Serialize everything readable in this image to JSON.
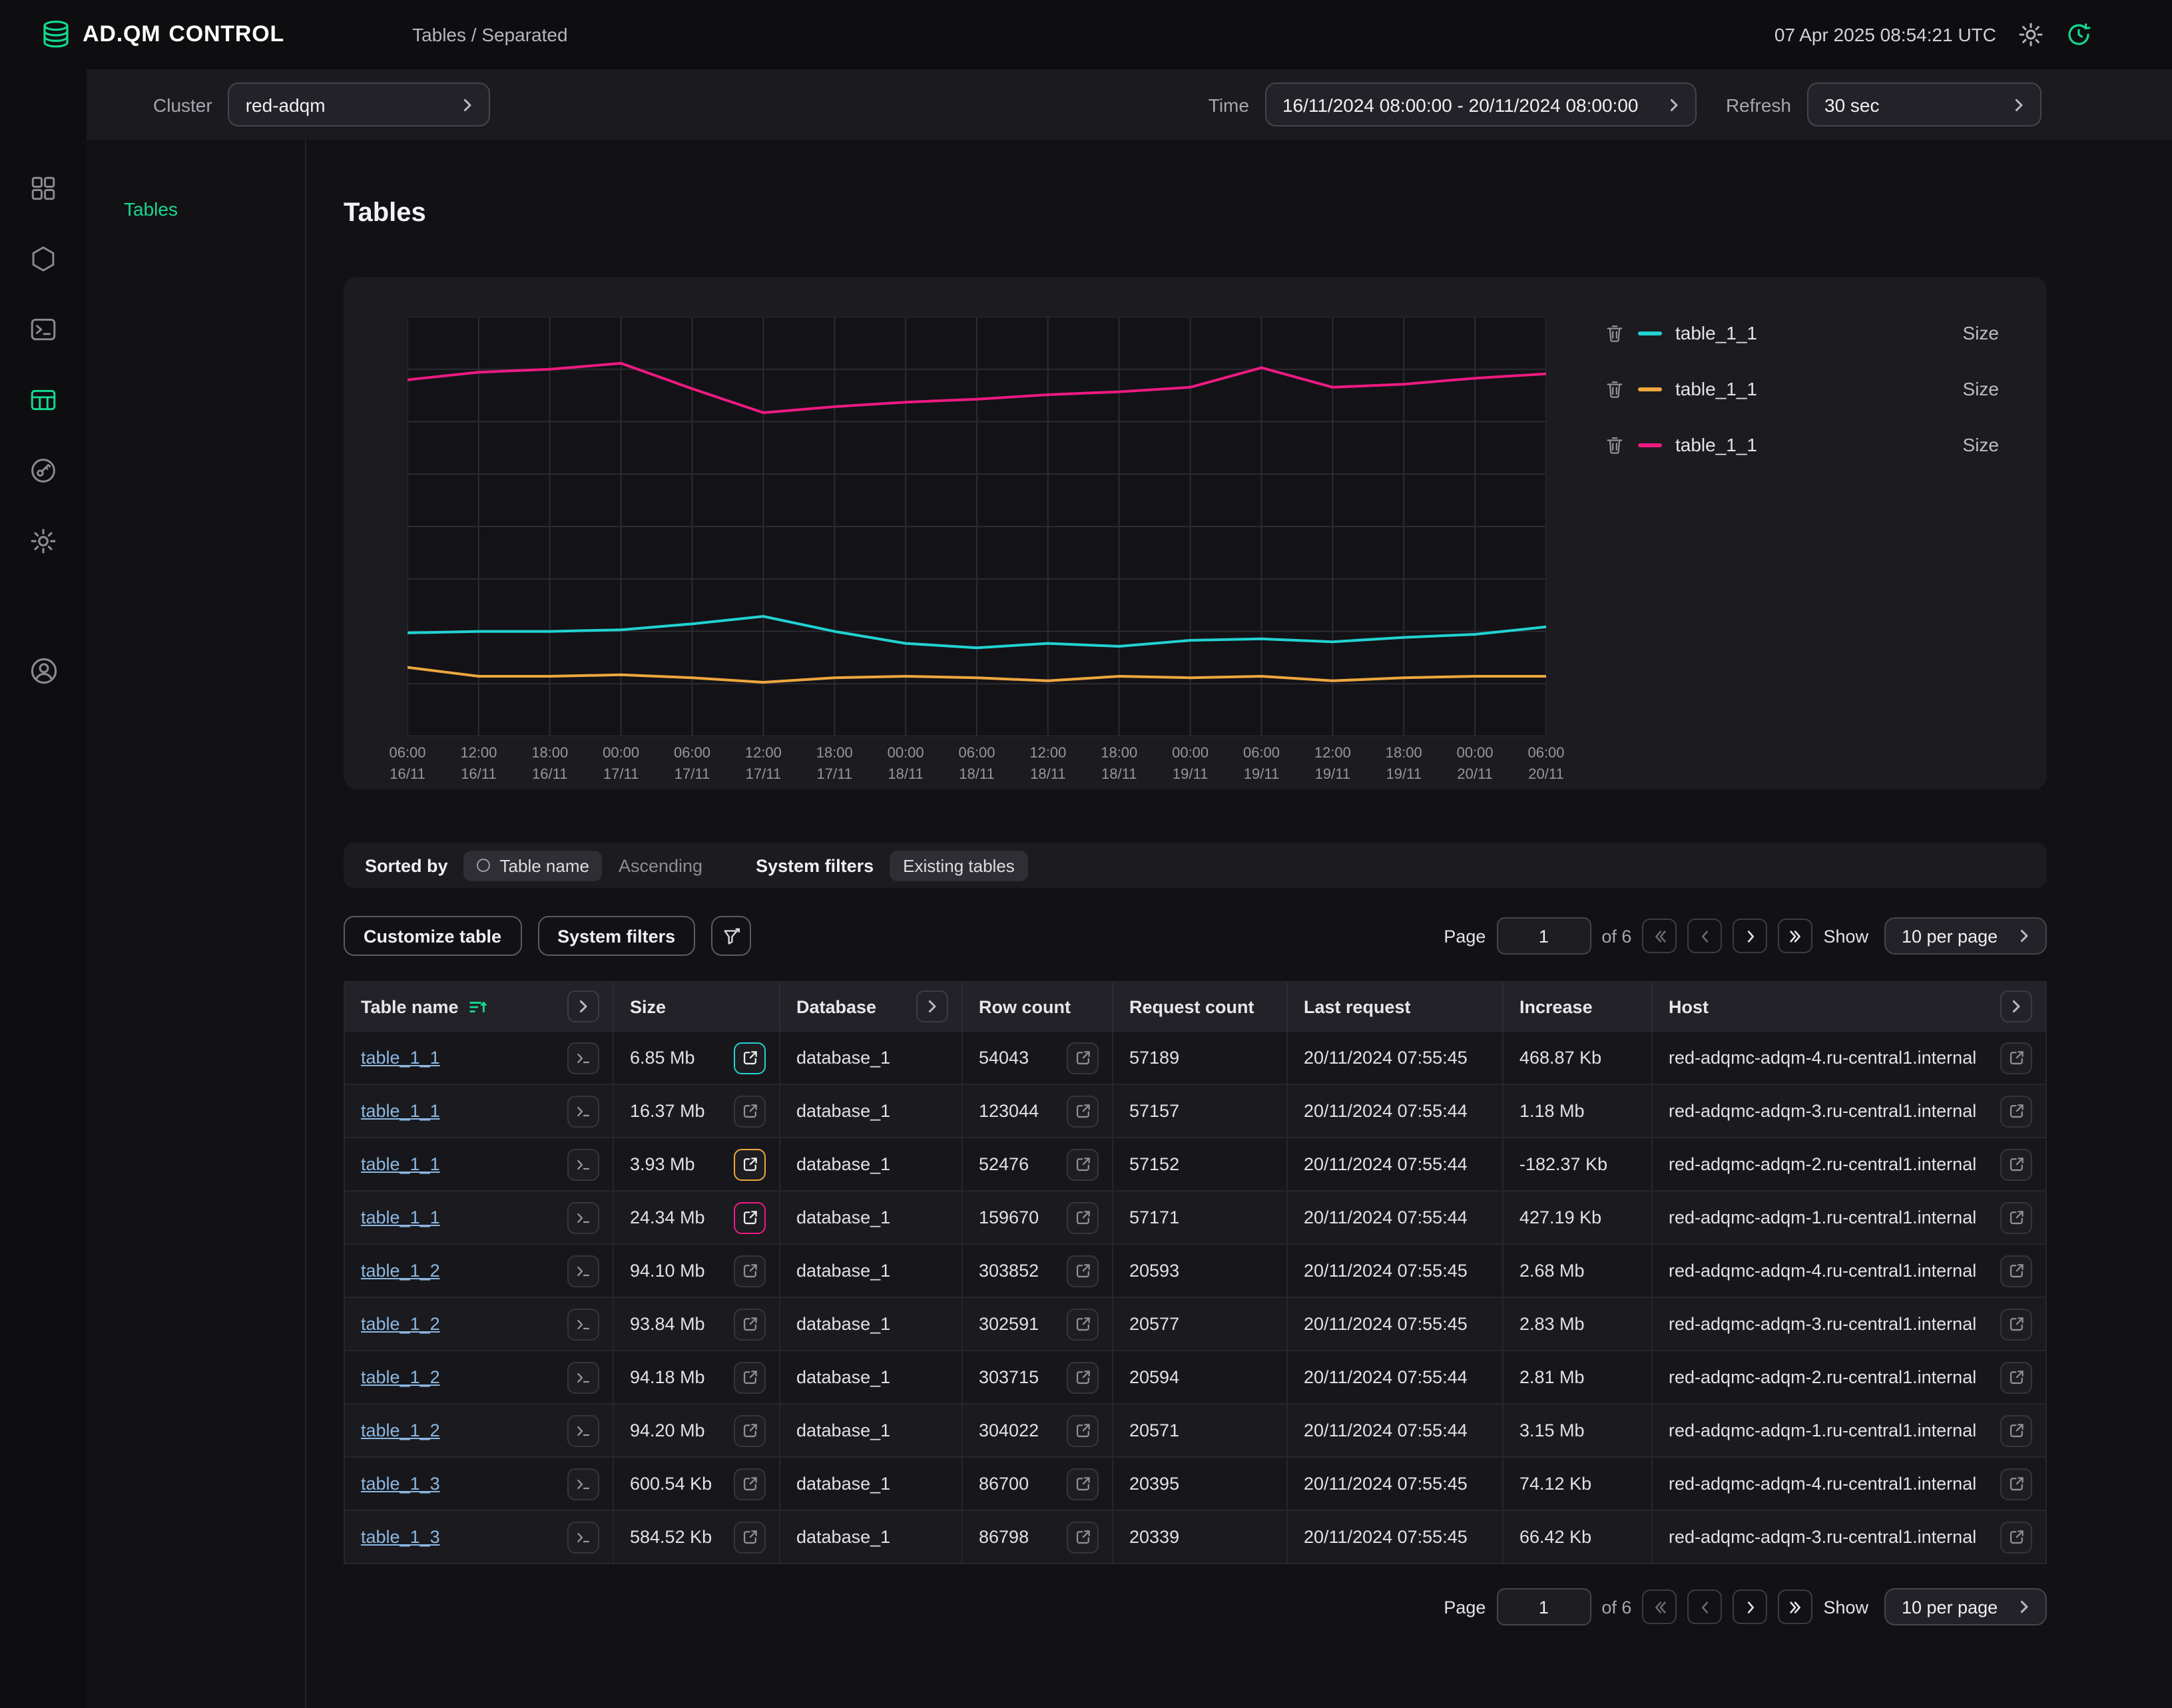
{
  "header": {
    "brand_primary": "AD.QM",
    "brand_secondary": "CONTROL",
    "breadcrumb": "Tables / Separated",
    "datetime": "07 Apr 2025  08:54:21 UTC"
  },
  "toolbar": {
    "cluster_label": "Cluster",
    "cluster_value": "red-adqm",
    "time_label": "Time",
    "time_value": "16/11/2024 08:00:00 - 20/11/2024 08:00:00",
    "refresh_label": "Refresh",
    "refresh_value": "30 sec"
  },
  "rail": {
    "items": [
      "dashboard-icon",
      "hexagon-icon",
      "terminal-icon",
      "tables-icon",
      "key-icon",
      "gear-icon"
    ],
    "active_item": "tables-icon",
    "bottom_item": "account-icon"
  },
  "subnav": {
    "items": [
      {
        "label": "Tables",
        "active": true
      }
    ]
  },
  "main": {
    "title": "Tables"
  },
  "chart_data": {
    "type": "line",
    "title": "",
    "xlabel": "",
    "ylabel": "",
    "unit": "Mb",
    "ylim": [
      0,
      28
    ],
    "grid": true,
    "legend_position": "right",
    "x_labels": [
      {
        "time": "06:00",
        "date": "16/11"
      },
      {
        "time": "12:00",
        "date": "16/11"
      },
      {
        "time": "18:00",
        "date": "16/11"
      },
      {
        "time": "00:00",
        "date": "17/11"
      },
      {
        "time": "06:00",
        "date": "17/11"
      },
      {
        "time": "12:00",
        "date": "17/11"
      },
      {
        "time": "18:00",
        "date": "17/11"
      },
      {
        "time": "00:00",
        "date": "18/11"
      },
      {
        "time": "06:00",
        "date": "18/11"
      },
      {
        "time": "12:00",
        "date": "18/11"
      },
      {
        "time": "18:00",
        "date": "18/11"
      },
      {
        "time": "00:00",
        "date": "19/11"
      },
      {
        "time": "06:00",
        "date": "19/11"
      },
      {
        "time": "12:00",
        "date": "19/11"
      },
      {
        "time": "18:00",
        "date": "19/11"
      },
      {
        "time": "00:00",
        "date": "20/11"
      },
      {
        "time": "06:00",
        "date": "20/11"
      }
    ],
    "series": [
      {
        "name": "table_1_1",
        "metric": "Size",
        "color": "#22d3d3",
        "values": [
          6.9,
          7.0,
          7.0,
          7.1,
          7.5,
          8.0,
          7.0,
          6.2,
          5.9,
          6.2,
          6.0,
          6.4,
          6.5,
          6.3,
          6.6,
          6.8,
          7.3
        ]
      },
      {
        "name": "table_1_1",
        "metric": "Size",
        "color": "#efa73e",
        "values": [
          4.6,
          4.0,
          4.0,
          4.1,
          3.9,
          3.6,
          3.9,
          4.0,
          3.9,
          3.7,
          4.0,
          3.9,
          4.0,
          3.7,
          3.9,
          4.0,
          4.0
        ]
      },
      {
        "name": "table_1_1",
        "metric": "Size",
        "color": "#ef1a82",
        "values": [
          23.8,
          24.3,
          24.5,
          24.9,
          23.2,
          21.6,
          22.0,
          22.3,
          22.5,
          22.8,
          23.0,
          23.3,
          24.6,
          23.3,
          23.5,
          23.9,
          24.2
        ]
      }
    ]
  },
  "sort_bar": {
    "sorted_by_label": "Sorted by",
    "sort_chip": "Table name",
    "direction": "Ascending",
    "filters_label": "System filters",
    "filter_chip": "Existing tables"
  },
  "controls": {
    "customize_button": "Customize table",
    "filters_button": "System filters"
  },
  "pagination": {
    "page_label": "Page",
    "page_value": "1",
    "total_label": "of 6",
    "show_label": "Show",
    "per_page_value": "10 per page"
  },
  "table": {
    "columns": [
      "Table name",
      "Size",
      "Database",
      "Row count",
      "Request count",
      "Last request",
      "Increase",
      "Host"
    ],
    "rows": [
      {
        "name": "table_1_1",
        "size": "6.85 Mb",
        "size_accent": "cyan",
        "database": "database_1",
        "row_count": "54043",
        "request_count": "57189",
        "last_request": "20/11/2024 07:55:45",
        "increase": "468.87 Kb",
        "host": "red-adqmc-adqm-4.ru-central1.internal"
      },
      {
        "name": "table_1_1",
        "size": "16.37 Mb",
        "size_accent": null,
        "database": "database_1",
        "row_count": "123044",
        "request_count": "57157",
        "last_request": "20/11/2024 07:55:44",
        "increase": "1.18 Mb",
        "host": "red-adqmc-adqm-3.ru-central1.internal"
      },
      {
        "name": "table_1_1",
        "size": "3.93 Mb",
        "size_accent": "yellow",
        "database": "database_1",
        "row_count": "52476",
        "request_count": "57152",
        "last_request": "20/11/2024 07:55:44",
        "increase": "-182.37 Kb",
        "host": "red-adqmc-adqm-2.ru-central1.internal"
      },
      {
        "name": "table_1_1",
        "size": "24.34 Mb",
        "size_accent": "pink",
        "database": "database_1",
        "row_count": "159670",
        "request_count": "57171",
        "last_request": "20/11/2024 07:55:44",
        "increase": "427.19 Kb",
        "host": "red-adqmc-adqm-1.ru-central1.internal"
      },
      {
        "name": "table_1_2",
        "size": "94.10 Mb",
        "size_accent": null,
        "database": "database_1",
        "row_count": "303852",
        "request_count": "20593",
        "last_request": "20/11/2024 07:55:45",
        "increase": "2.68 Mb",
        "host": "red-adqmc-adqm-4.ru-central1.internal"
      },
      {
        "name": "table_1_2",
        "size": "93.84 Mb",
        "size_accent": null,
        "database": "database_1",
        "row_count": "302591",
        "request_count": "20577",
        "last_request": "20/11/2024 07:55:45",
        "increase": "2.83 Mb",
        "host": "red-adqmc-adqm-3.ru-central1.internal"
      },
      {
        "name": "table_1_2",
        "size": "94.18 Mb",
        "size_accent": null,
        "database": "database_1",
        "row_count": "303715",
        "request_count": "20594",
        "last_request": "20/11/2024 07:55:44",
        "increase": "2.81 Mb",
        "host": "red-adqmc-adqm-2.ru-central1.internal"
      },
      {
        "name": "table_1_2",
        "size": "94.20 Mb",
        "size_accent": null,
        "database": "database_1",
        "row_count": "304022",
        "request_count": "20571",
        "last_request": "20/11/2024 07:55:44",
        "increase": "3.15 Mb",
        "host": "red-adqmc-adqm-1.ru-central1.internal"
      },
      {
        "name": "table_1_3",
        "size": "600.54 Kb",
        "size_accent": null,
        "database": "database_1",
        "row_count": "86700",
        "request_count": "20395",
        "last_request": "20/11/2024 07:55:45",
        "increase": "74.12 Kb",
        "host": "red-adqmc-adqm-4.ru-central1.internal"
      },
      {
        "name": "table_1_3",
        "size": "584.52 Kb",
        "size_accent": null,
        "database": "database_1",
        "row_count": "86798",
        "request_count": "20339",
        "last_request": "20/11/2024 07:55:45",
        "increase": "66.42 Kb",
        "host": "red-adqmc-adqm-3.ru-central1.internal"
      }
    ]
  },
  "colors": {
    "accent_green": "#14d98e",
    "series_cyan": "#22d3d3",
    "series_yellow": "#efa73e",
    "series_pink": "#ef1a82",
    "link": "#8cb8e2"
  }
}
